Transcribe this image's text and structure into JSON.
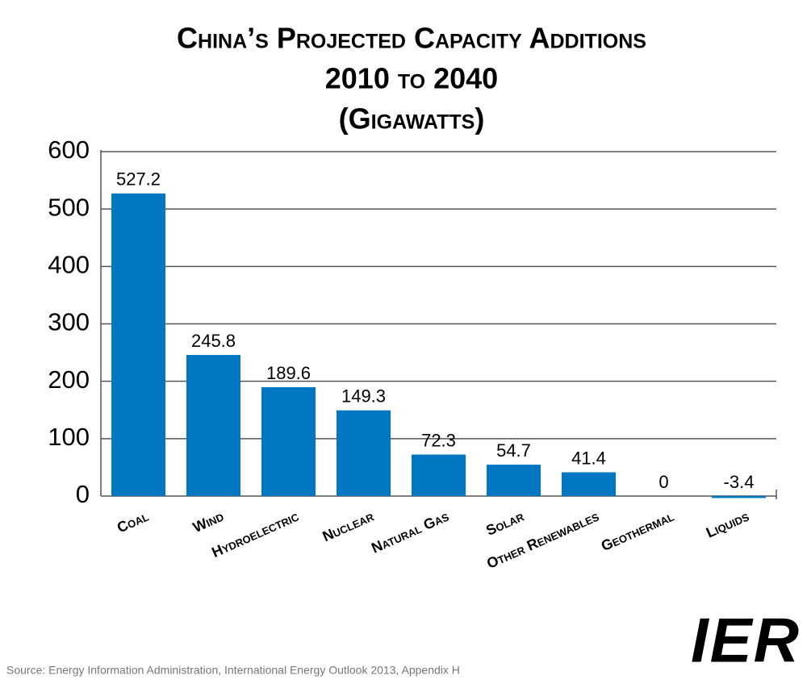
{
  "chart_data": {
    "type": "bar",
    "title": "China’s Projected Capacity Additions",
    "subtitle": "2010 to 2040",
    "y_label": "(Gigawatts)",
    "categories": [
      "Coal",
      "Wind",
      "Hydroelectric",
      "Nuclear",
      "Natural Gas",
      "Solar",
      "Other Renewables",
      "Geothermal",
      "Liquids"
    ],
    "values": [
      527.2,
      245.8,
      189.6,
      149.3,
      72.3,
      54.7,
      41.4,
      0,
      -3.4
    ],
    "color": "#0077c0",
    "ylim": [
      0,
      600
    ],
    "yticks": [
      0,
      100,
      200,
      300,
      400,
      500,
      600
    ],
    "grid": true,
    "source": "Source: Energy Information Administration, International Energy Outlook 2013, Appendix H",
    "logo": "IER"
  }
}
